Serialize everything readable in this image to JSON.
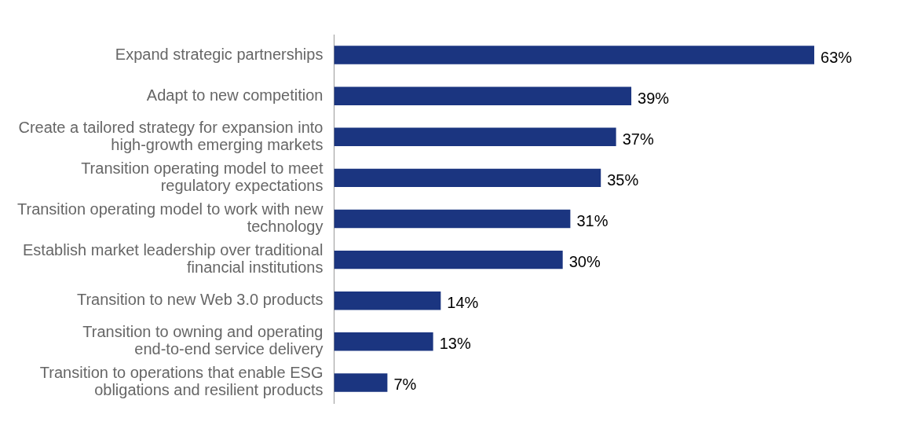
{
  "chart_data": {
    "type": "bar",
    "orientation": "horizontal",
    "categories": [
      "Expand strategic partnerships",
      "Adapt to new competition",
      "Create a tailored strategy for expansion into high-growth emerging markets",
      "Transition operating model to meet regulatory expectations",
      "Transition operating model to work with new technology",
      "Establish market leadership over traditional financial institutions",
      "Transition to new Web 3.0 products",
      "Transition to owning and operating end-to-end service delivery",
      "Transition to operations that enable ESG obligations and resilient products"
    ],
    "values": [
      63,
      39,
      37,
      35,
      31,
      30,
      14,
      13,
      7
    ],
    "value_labels": [
      "63%",
      "39%",
      "37%",
      "35%",
      "31%",
      "30%",
      "14%",
      "13%",
      "7%"
    ],
    "color": "#1b3580"
  }
}
